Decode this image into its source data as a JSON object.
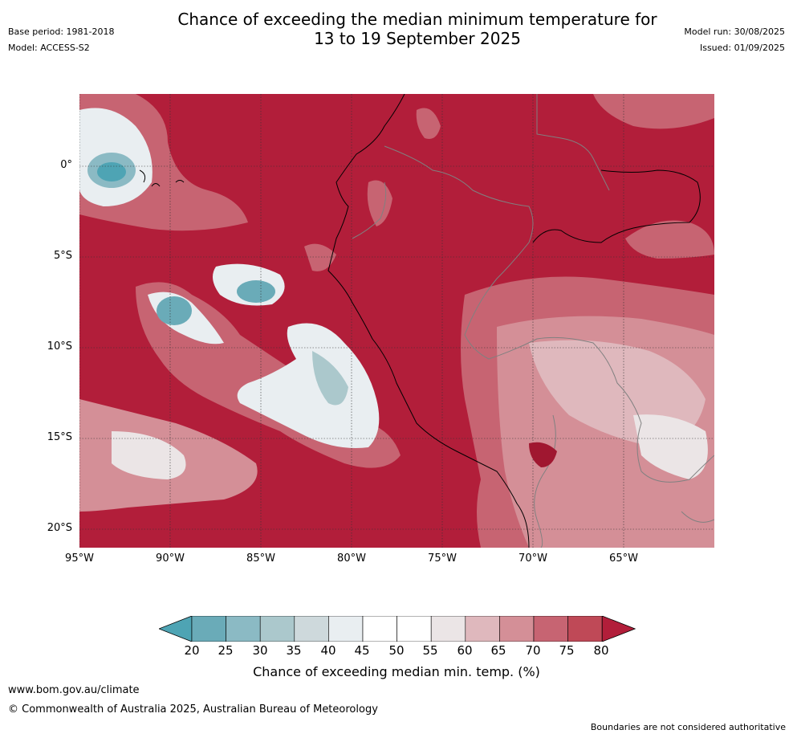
{
  "title": {
    "line1": "Chance of exceeding the median minimum temperature for",
    "line2": "13 to 19 September 2025"
  },
  "meta_left": {
    "base_period": "Base period: 1981-2018",
    "model": "Model: ACCESS-S2"
  },
  "meta_right": {
    "model_run": "Model run: 30/08/2025",
    "issued": "Issued: 01/09/2025"
  },
  "map": {
    "lat_labels": [
      "0°",
      "5°S",
      "10°S",
      "15°S",
      "20°S"
    ],
    "lon_labels": [
      "95°W",
      "90°W",
      "85°W",
      "80°W",
      "75°W",
      "70°W",
      "65°W"
    ],
    "background_color": "#b21e3a",
    "coastline_color": "#000000",
    "border_color": "#808080"
  },
  "colorbar": {
    "ticks": [
      "20",
      "25",
      "30",
      "35",
      "40",
      "45",
      "50",
      "55",
      "60",
      "65",
      "70",
      "75",
      "80"
    ],
    "colors": [
      "#4ea4b4",
      "#6aabb8",
      "#8bbac4",
      "#abc8cc",
      "#ced9dc",
      "#e9eef1",
      "#ffffff",
      "#ffffff",
      "#ebe5e6",
      "#dfb8bd",
      "#d48f97",
      "#c76472",
      "#bf4957",
      "#b21e3a"
    ],
    "label": "Chance of exceeding median min. temp. (%)"
  },
  "footer": {
    "url": "www.bom.gov.au/climate",
    "copyright": "© Commonwealth of Australia 2025, Australian Bureau of Meteorology",
    "disclaimer": "Boundaries are not considered authoritative"
  }
}
